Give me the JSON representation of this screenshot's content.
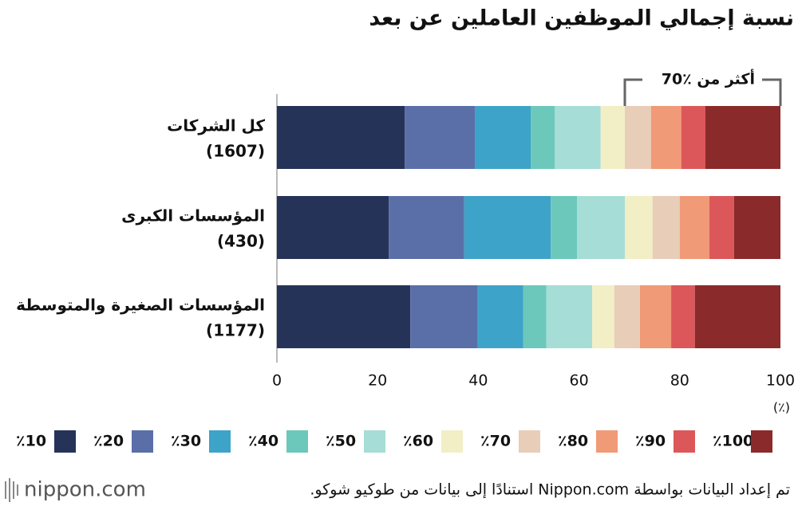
{
  "chart_data": {
    "type": "stacked-horizontal-bar",
    "title": "نسبة إجمالي الموظفين العاملين عن بعد",
    "annotation": "أكثر من ٪70",
    "categories": [
      "كل الشركات",
      "المؤسسات الكبرى",
      "المؤسسات الصغيرة والمتوسطة"
    ],
    "category_notes": [
      "(1607)",
      "(430)",
      "(1177)"
    ],
    "x_unit": "(٪)",
    "xlim": [
      0,
      100
    ],
    "xticks": [
      0,
      20,
      40,
      60,
      80,
      100
    ],
    "series": [
      {
        "name": "٪10",
        "color": "#263358",
        "values": [
          25.4,
          22.2,
          26.5
        ]
      },
      {
        "name": "٪20",
        "color": "#5a6fa8",
        "values": [
          13.9,
          15.0,
          13.4
        ]
      },
      {
        "name": "٪30",
        "color": "#3ea3c8",
        "values": [
          11.1,
          17.2,
          9.0
        ]
      },
      {
        "name": "٪40",
        "color": "#6cc8bb",
        "values": [
          4.8,
          5.2,
          4.6
        ]
      },
      {
        "name": "٪50",
        "color": "#a6ddd6",
        "values": [
          9.1,
          9.5,
          9.1
        ]
      },
      {
        "name": "٪60",
        "color": "#f2efc6",
        "values": [
          4.8,
          5.5,
          4.4
        ]
      },
      {
        "name": "٪70",
        "color": "#e8cdb8",
        "values": [
          5.2,
          5.4,
          5.1
        ]
      },
      {
        "name": "٪80",
        "color": "#f09a77",
        "values": [
          6.0,
          5.9,
          6.2
        ]
      },
      {
        "name": "٪90",
        "color": "#dc5759",
        "values": [
          4.8,
          4.9,
          4.7
        ]
      },
      {
        "name": "٪100",
        "color": "#8b2a2b",
        "values": [
          14.9,
          9.2,
          17.0
        ]
      }
    ],
    "source": "تم إعداد البيانات بواسطة Nippon.com استنادًا إلى بيانات من طوكيو شوكو.",
    "logo": "nippon.com"
  }
}
